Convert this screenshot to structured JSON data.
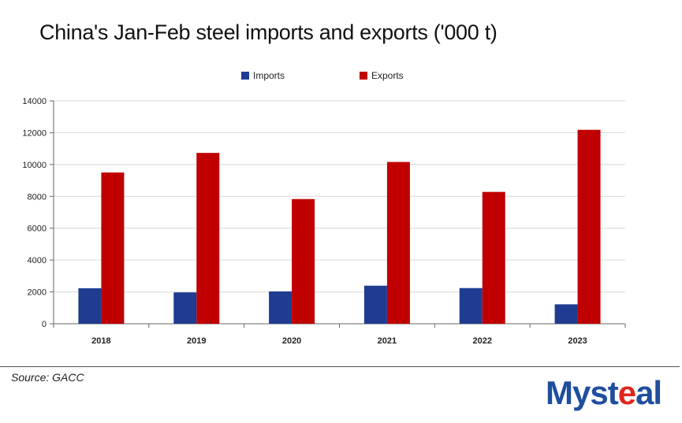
{
  "chart_data": {
    "type": "bar",
    "title": "China's Jan-Feb steel imports and exports ('000 t)",
    "categories": [
      "2018",
      "2019",
      "2020",
      "2021",
      "2022",
      "2023"
    ],
    "series": [
      {
        "name": "Imports",
        "color": "#1f3c91",
        "values": [
          2230,
          1970,
          2030,
          2390,
          2240,
          1220
        ]
      },
      {
        "name": "Exports",
        "color": "#c00000",
        "values": [
          9500,
          10730,
          7830,
          10160,
          8280,
          12180
        ]
      }
    ],
    "ylim": [
      0,
      14000
    ],
    "yticks": [
      0,
      2000,
      4000,
      6000,
      8000,
      10000,
      12000,
      14000
    ],
    "xlabel": "",
    "ylabel": "",
    "legend": "top-center",
    "grid": true
  },
  "source": "Source: GACC",
  "logo": {
    "text_main": "Myst",
    "text_accent": "e",
    "text_end": "al"
  }
}
